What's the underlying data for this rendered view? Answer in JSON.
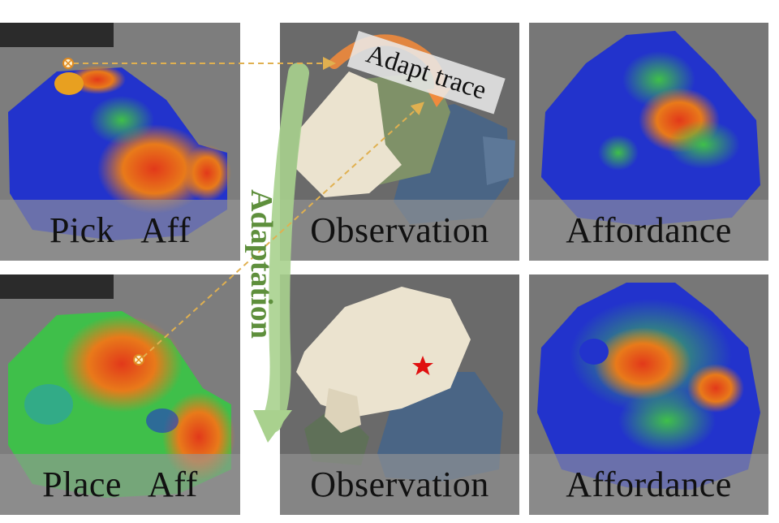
{
  "panels": {
    "pick_aff": {
      "label": "Pick   Aff"
    },
    "observation_top": {
      "label": "Observation"
    },
    "affordance_top": {
      "label": "Affordance"
    },
    "place_aff": {
      "label": "Place   Aff"
    },
    "observation_bottom": {
      "label": "Observation"
    },
    "affordance_bottom": {
      "label": "Affordance"
    }
  },
  "annotations": {
    "adaptation": "Adaptation",
    "adapt_trace": "Adapt trace"
  },
  "colors": {
    "adaptation_arrow": "#a9d18e",
    "adapt_trace_arrow": "#f08a3c",
    "dashed_link": "#e0b050",
    "target_star": "#e01010"
  }
}
